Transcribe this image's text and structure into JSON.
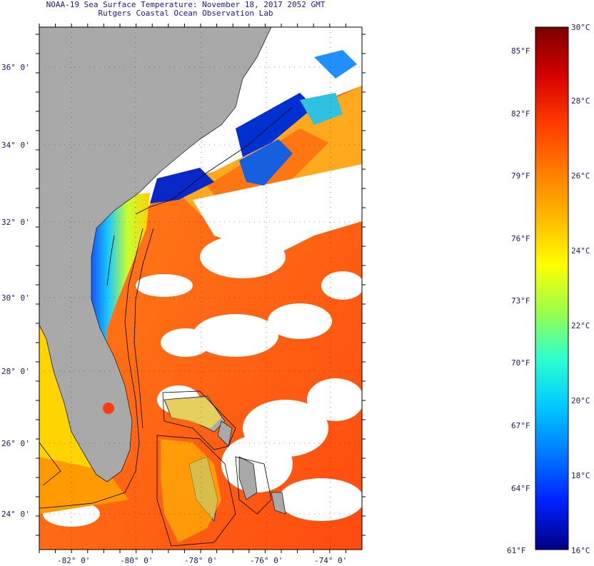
{
  "header": {
    "title_line1": "NOAA-19 Sea Surface Temperature:  November 18, 2017 2052 GMT",
    "title_line2": "Rutgers Coastal Ocean Observation Lab"
  },
  "map": {
    "lat_labels": [
      "36° 0'",
      "34° 0'",
      "32° 0'",
      "30° 0'",
      "28° 0'",
      "26° 0'",
      "24° 0'"
    ],
    "lon_labels": [
      "-82° 0'",
      "-80° 0'",
      "-78° 0'",
      "-76° 0'",
      "-74° 0'"
    ],
    "colors": {
      "land": "#a9a9a9",
      "cloud": "#ffffff",
      "gridline": "#333333"
    }
  },
  "colorbar": {
    "fahrenheit_labels": [
      "85°F",
      "82°F",
      "79°F",
      "76°F",
      "73°F",
      "70°F",
      "67°F",
      "64°F",
      "61°F"
    ],
    "celsius_labels": [
      "30°C",
      "28°C",
      "26°C",
      "24°C",
      "22°C",
      "20°C",
      "18°C",
      "16°C"
    ],
    "stops": [
      "#7a0000",
      "#d40000",
      "#ff3a00",
      "#ff7a00",
      "#ffb800",
      "#ffff00",
      "#9aff4a",
      "#2cffd0",
      "#00c8ff",
      "#0078ff",
      "#0020ff",
      "#000080"
    ]
  }
}
